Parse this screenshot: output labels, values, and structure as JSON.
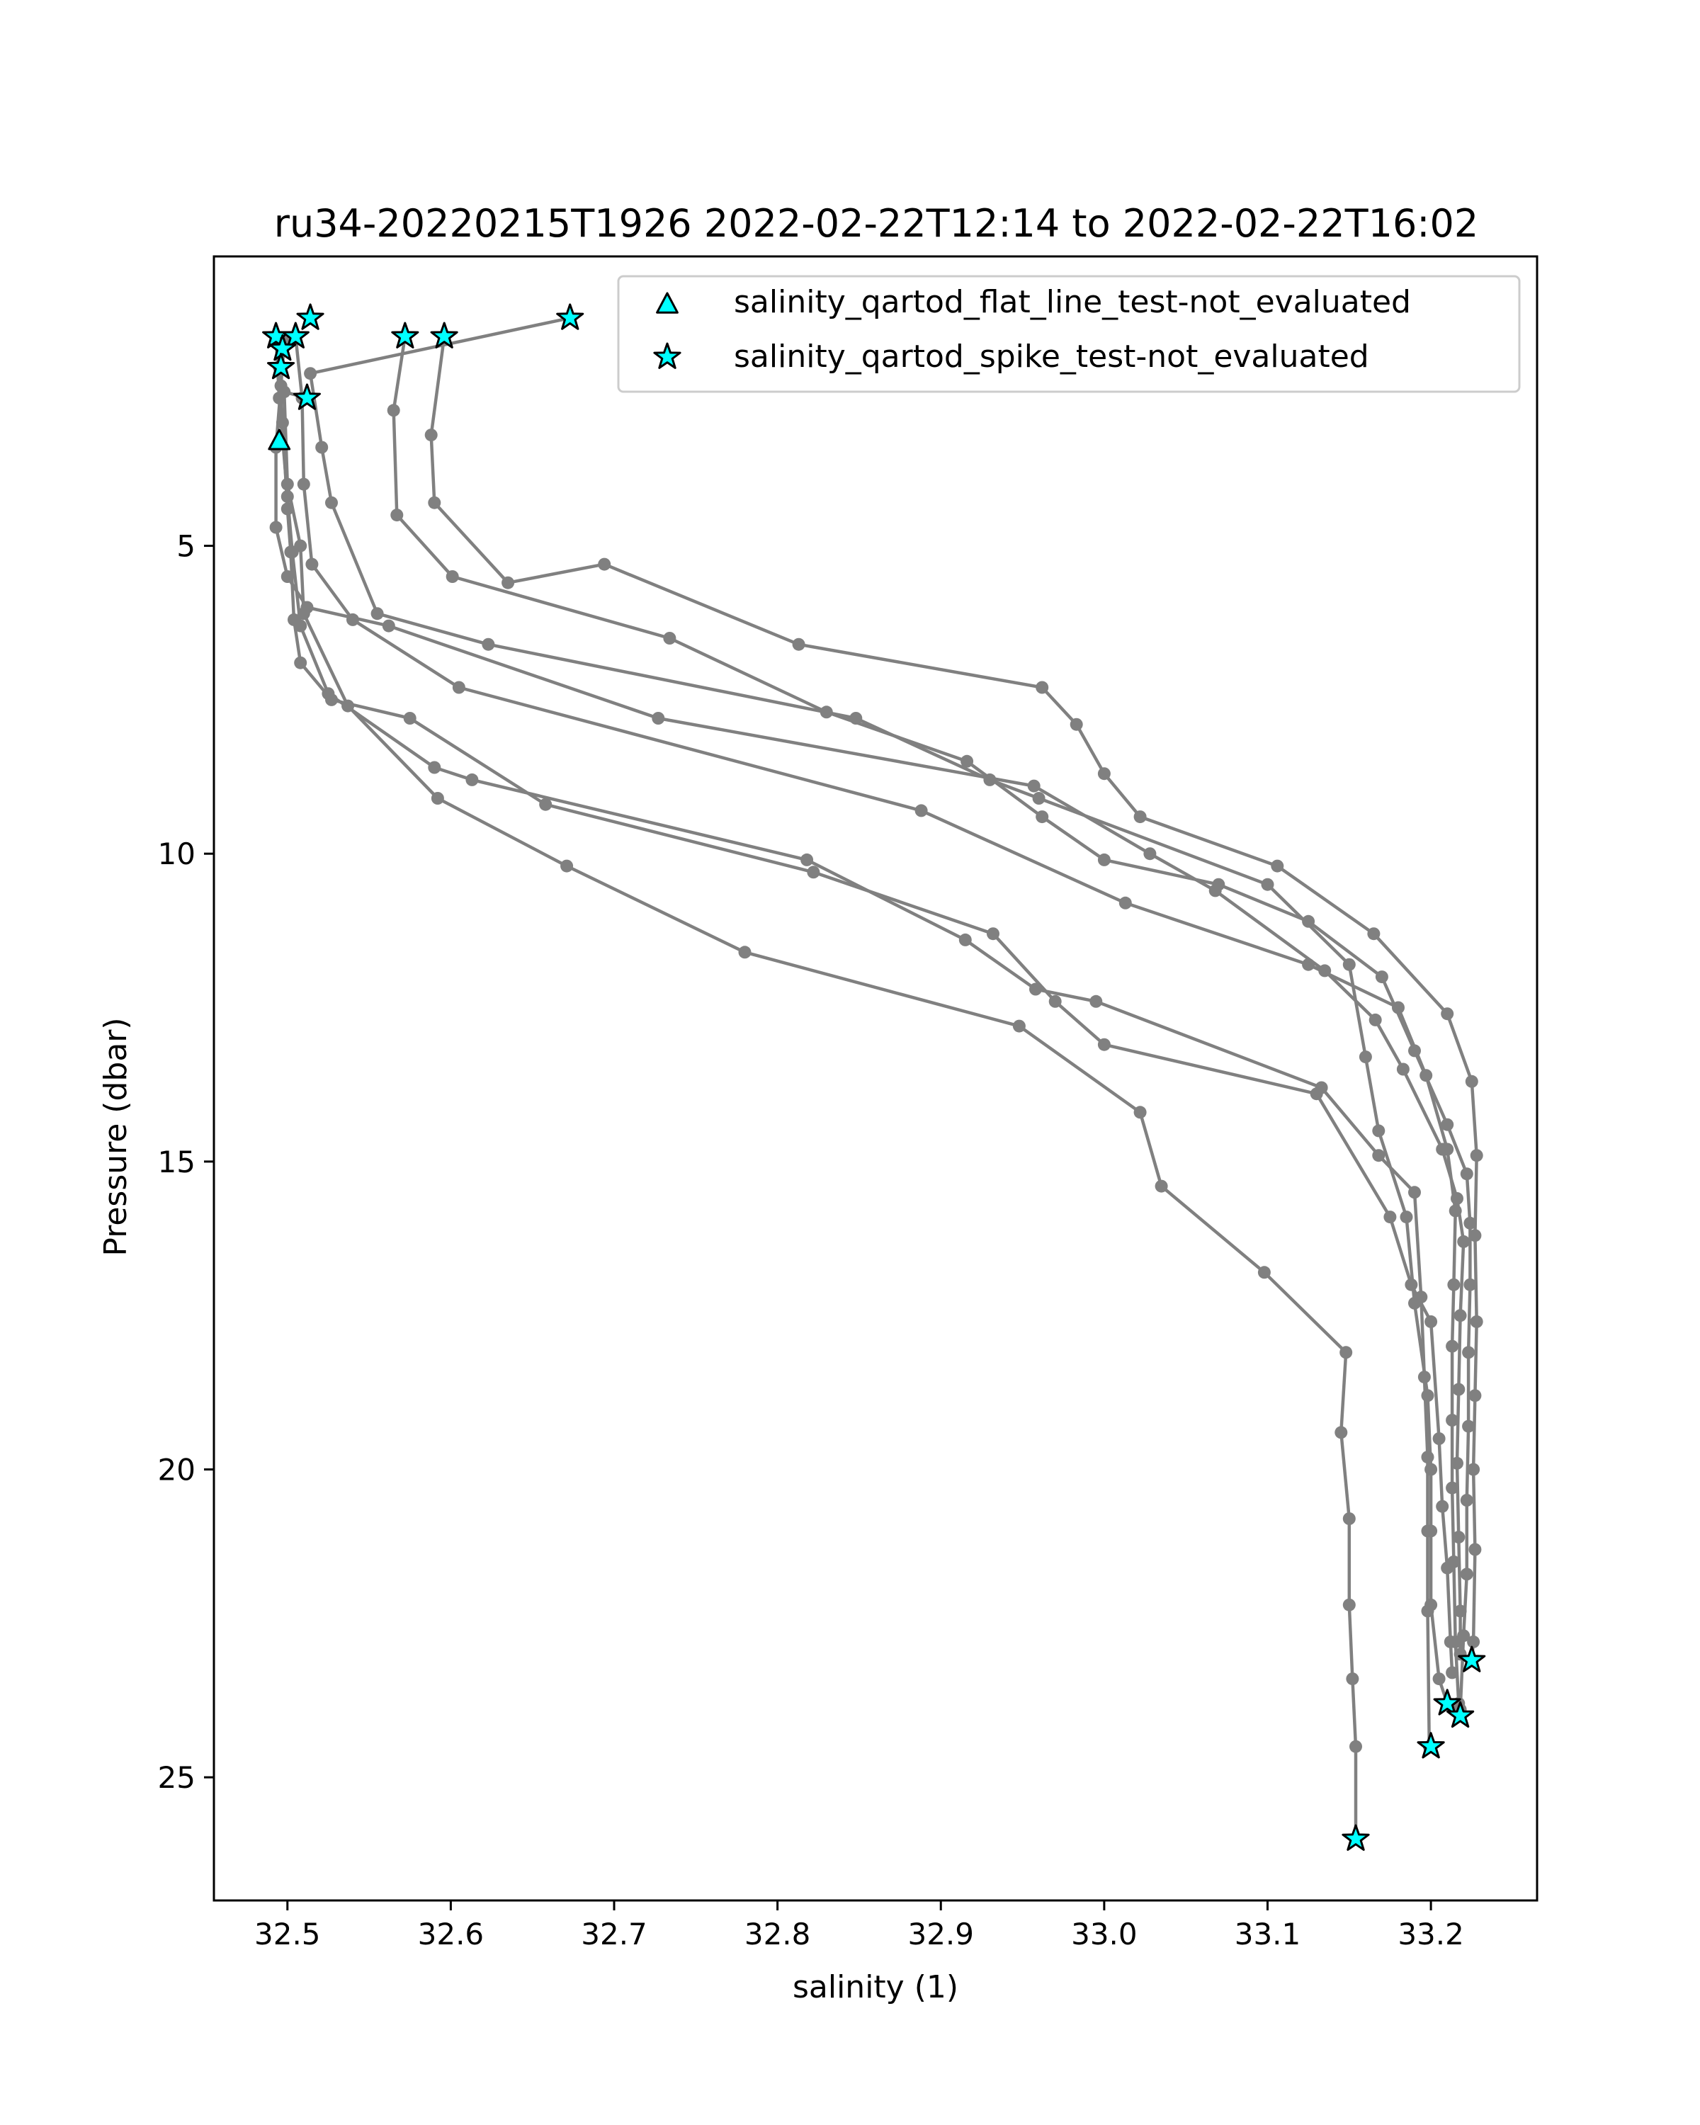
{
  "chart_data": {
    "type": "line",
    "title": "ru34-20220215T1926 2022-02-22T12:14 to 2022-02-22T16:02",
    "xlabel": "salinity (1)",
    "ylabel": "Pressure (dbar)",
    "xlim": [
      32.455,
      33.265
    ],
    "ylim": [
      27.0,
      0.3
    ],
    "y_inverted": true,
    "x_ticks": [
      "32.5",
      "32.6",
      "32.7",
      "32.8",
      "32.9",
      "33.0",
      "33.1",
      "33.2"
    ],
    "x_tick_values": [
      32.5,
      32.6,
      32.7,
      32.8,
      32.9,
      33.0,
      33.1,
      33.2
    ],
    "y_ticks": [
      "5",
      "10",
      "15",
      "20",
      "25"
    ],
    "y_tick_values": [
      5,
      10,
      15,
      20,
      25
    ],
    "grid": false,
    "legend_placement": "top-right",
    "colors": {
      "line": "#808080",
      "marker_fill": "#00ffff",
      "marker_edge": "#000000"
    },
    "legend": [
      {
        "label": "salinity_qartod_flat_line_test-not_evaluated",
        "marker": "triangle"
      },
      {
        "label": "salinity_qartod_spike_test-not_evaluated",
        "marker": "star"
      }
    ],
    "series": [
      {
        "points": [
          [
            32.673,
            1.3
          ],
          [
            32.514,
            2.2
          ],
          [
            32.521,
            3.4
          ],
          [
            32.527,
            4.3
          ],
          [
            32.555,
            6.1
          ],
          [
            32.623,
            6.6
          ],
          [
            32.848,
            7.8
          ],
          [
            32.93,
            8.8
          ],
          [
            32.96,
            9.1
          ],
          [
            33.1,
            10.5
          ],
          [
            33.15,
            11.8
          ],
          [
            33.16,
            13.3
          ],
          [
            33.168,
            14.5
          ],
          [
            33.185,
            15.9
          ],
          [
            33.19,
            17.3
          ],
          [
            33.198,
            18.8
          ],
          [
            33.2,
            20.0
          ],
          [
            33.2,
            21.0
          ],
          [
            33.2,
            22.2
          ],
          [
            33.205,
            23.4
          ],
          [
            33.21,
            23.8
          ]
        ]
      },
      {
        "points": [
          [
            32.596,
            1.6
          ],
          [
            32.588,
            3.2
          ],
          [
            32.59,
            4.3
          ],
          [
            32.635,
            5.6
          ],
          [
            32.694,
            5.3
          ],
          [
            32.813,
            6.6
          ],
          [
            32.962,
            7.3
          ],
          [
            32.983,
            7.9
          ],
          [
            33.0,
            8.7
          ],
          [
            33.022,
            9.4
          ],
          [
            33.106,
            10.2
          ],
          [
            33.165,
            11.3
          ],
          [
            33.21,
            12.6
          ],
          [
            33.225,
            13.7
          ],
          [
            33.228,
            14.9
          ],
          [
            33.227,
            16.2
          ],
          [
            33.228,
            17.6
          ],
          [
            33.227,
            18.8
          ],
          [
            33.226,
            20.0
          ],
          [
            33.227,
            21.3
          ],
          [
            33.226,
            22.8
          ],
          [
            33.225,
            23.1
          ]
        ]
      },
      {
        "points": [
          [
            32.572,
            1.6
          ],
          [
            32.565,
            2.8
          ],
          [
            32.567,
            4.5
          ],
          [
            32.601,
            5.5
          ],
          [
            32.734,
            6.5
          ],
          [
            32.83,
            7.7
          ],
          [
            32.916,
            8.5
          ],
          [
            32.962,
            9.4
          ],
          [
            33.0,
            10.1
          ],
          [
            33.07,
            10.5
          ],
          [
            33.125,
            11.1
          ],
          [
            33.17,
            12.0
          ],
          [
            33.19,
            13.2
          ],
          [
            33.21,
            14.4
          ],
          [
            33.222,
            15.2
          ],
          [
            33.224,
            16.0
          ],
          [
            33.224,
            17.0
          ],
          [
            33.223,
            18.1
          ],
          [
            33.223,
            19.3
          ],
          [
            33.222,
            20.5
          ],
          [
            33.222,
            21.7
          ],
          [
            33.22,
            22.7
          ],
          [
            33.218,
            23.9
          ]
        ]
      },
      {
        "points": [
          [
            32.498,
            1.7
          ],
          [
            32.496,
            2.4
          ],
          [
            32.493,
            3.4
          ],
          [
            32.493,
            4.7
          ],
          [
            32.5,
            5.5
          ],
          [
            32.512,
            6.0
          ],
          [
            32.562,
            6.3
          ],
          [
            32.727,
            7.8
          ],
          [
            32.957,
            8.9
          ],
          [
            33.028,
            10.0
          ],
          [
            33.068,
            10.6
          ],
          [
            33.135,
            11.9
          ],
          [
            33.166,
            12.7
          ],
          [
            33.183,
            13.5
          ],
          [
            33.207,
            14.8
          ],
          [
            33.216,
            15.6
          ],
          [
            33.22,
            16.3
          ],
          [
            33.218,
            17.5
          ],
          [
            33.217,
            18.7
          ],
          [
            33.216,
            19.9
          ],
          [
            33.217,
            21.1
          ],
          [
            33.218,
            22.3
          ],
          [
            33.218,
            23.0
          ],
          [
            33.225,
            23.1
          ]
        ]
      },
      {
        "points": [
          [
            32.505,
            1.6
          ],
          [
            32.509,
            2.6
          ],
          [
            32.51,
            4.0
          ],
          [
            32.515,
            5.3
          ],
          [
            32.54,
            6.2
          ],
          [
            32.605,
            7.3
          ],
          [
            32.888,
            9.3
          ],
          [
            33.013,
            10.8
          ],
          [
            33.125,
            11.8
          ],
          [
            33.18,
            12.5
          ],
          [
            33.197,
            13.6
          ],
          [
            33.21,
            14.8
          ],
          [
            33.215,
            15.8
          ],
          [
            33.214,
            17.0
          ],
          [
            33.213,
            18.0
          ],
          [
            33.213,
            19.2
          ],
          [
            33.213,
            20.3
          ],
          [
            33.214,
            21.5
          ],
          [
            33.215,
            22.8
          ],
          [
            33.217,
            23.8
          ],
          [
            33.218,
            24.0
          ]
        ]
      },
      {
        "points": [
          [
            32.493,
            1.6
          ],
          [
            32.495,
            2.6
          ],
          [
            32.5,
            4.2
          ],
          [
            32.503,
            5.1
          ],
          [
            32.508,
            6.3
          ],
          [
            32.525,
            7.4
          ],
          [
            32.59,
            8.6
          ],
          [
            32.613,
            8.8
          ],
          [
            32.818,
            10.1
          ],
          [
            32.915,
            11.4
          ],
          [
            32.958,
            12.2
          ],
          [
            32.995,
            12.4
          ],
          [
            33.133,
            13.8
          ],
          [
            33.168,
            14.9
          ],
          [
            33.19,
            15.5
          ],
          [
            33.194,
            17.2
          ],
          [
            33.196,
            18.5
          ],
          [
            33.198,
            19.8
          ],
          [
            33.198,
            21.0
          ],
          [
            33.198,
            22.3
          ],
          [
            33.199,
            24.5
          ],
          [
            33.2,
            24.5
          ]
        ]
      },
      {
        "points": [
          [
            32.495,
            2.1
          ],
          [
            32.497,
            3.0
          ],
          [
            32.5,
            4.4
          ],
          [
            32.502,
            5.1
          ],
          [
            32.504,
            6.2
          ],
          [
            32.508,
            6.9
          ],
          [
            32.527,
            7.5
          ],
          [
            32.575,
            7.8
          ],
          [
            32.658,
            9.2
          ],
          [
            32.822,
            10.3
          ],
          [
            32.932,
            11.3
          ],
          [
            32.97,
            12.4
          ],
          [
            33.0,
            13.1
          ],
          [
            33.13,
            13.9
          ],
          [
            33.175,
            15.9
          ],
          [
            33.188,
            17.0
          ],
          [
            33.2,
            17.6
          ],
          [
            33.205,
            19.5
          ],
          [
            33.207,
            20.6
          ],
          [
            33.21,
            21.6
          ],
          [
            33.212,
            22.8
          ],
          [
            33.213,
            23.3
          ]
        ]
      },
      {
        "points": [
          [
            32.512,
            2.6
          ],
          [
            32.498,
            2.5
          ],
          [
            32.5,
            4.0
          ],
          [
            32.508,
            5.0
          ],
          [
            32.51,
            6.1
          ],
          [
            32.537,
            7.6
          ],
          [
            32.592,
            9.1
          ],
          [
            32.671,
            10.2
          ],
          [
            32.78,
            11.6
          ],
          [
            32.948,
            12.8
          ],
          [
            33.022,
            14.2
          ],
          [
            33.035,
            15.4
          ],
          [
            33.098,
            16.8
          ],
          [
            33.148,
            18.1
          ],
          [
            33.145,
            19.4
          ],
          [
            33.15,
            20.8
          ],
          [
            33.15,
            22.2
          ],
          [
            33.152,
            23.4
          ],
          [
            33.154,
            24.5
          ],
          [
            33.154,
            26.0
          ]
        ]
      }
    ],
    "spike_markers": [
      [
        32.673,
        1.3
      ],
      [
        32.514,
        1.3
      ],
      [
        32.493,
        1.6
      ],
      [
        32.505,
        1.6
      ],
      [
        32.497,
        1.8
      ],
      [
        32.572,
        1.6
      ],
      [
        32.596,
        1.6
      ],
      [
        32.496,
        2.1
      ],
      [
        32.512,
        2.6
      ],
      [
        33.225,
        23.1
      ],
      [
        33.21,
        23.8
      ],
      [
        33.218,
        24.0
      ],
      [
        33.2,
        24.5
      ],
      [
        33.154,
        26.0
      ]
    ],
    "flat_line_markers": [
      [
        32.495,
        3.3
      ]
    ]
  }
}
